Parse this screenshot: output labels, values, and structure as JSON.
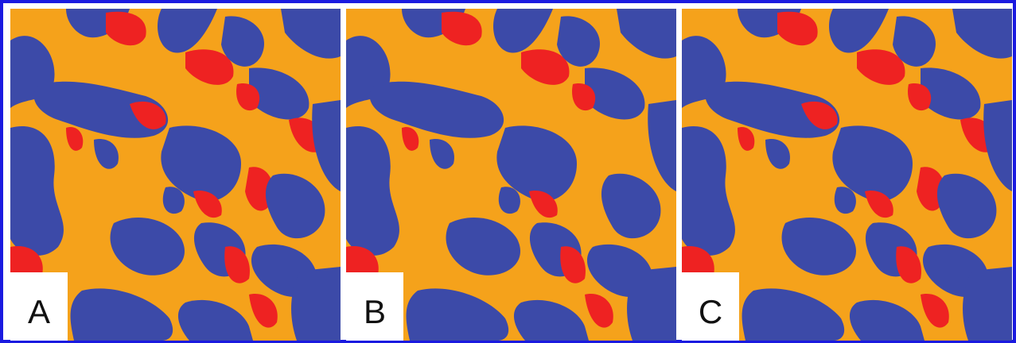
{
  "figure": {
    "colors": {
      "border": "#1a1ae0",
      "phase_orange": "#f5a21b",
      "phase_blue": "#3c4aa8",
      "phase_red": "#ee2222",
      "label_background": "#ffffff"
    },
    "panels": [
      {
        "label": "A"
      },
      {
        "label": "B"
      },
      {
        "label": "C"
      }
    ]
  }
}
